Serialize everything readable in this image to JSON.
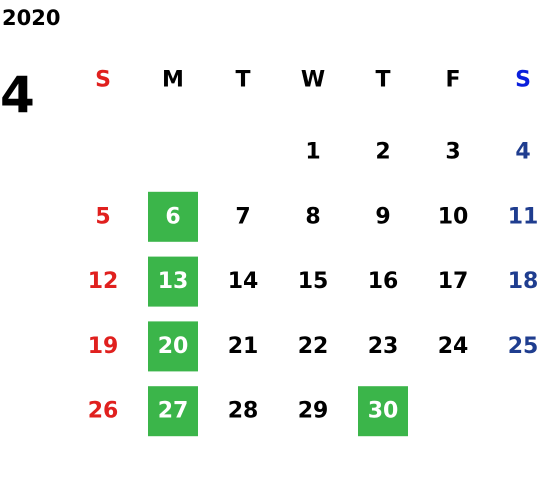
{
  "calendar": {
    "year": "2020",
    "month": "4",
    "weekdays": [
      "S",
      "M",
      "T",
      "W",
      "T",
      "F",
      "S"
    ],
    "weeks": [
      [
        null,
        null,
        null,
        1,
        2,
        3,
        4
      ],
      [
        5,
        6,
        7,
        8,
        9,
        10,
        11
      ],
      [
        12,
        13,
        14,
        15,
        16,
        17,
        18
      ],
      [
        19,
        20,
        21,
        22,
        23,
        24,
        25
      ],
      [
        26,
        27,
        28,
        29,
        30,
        null,
        null
      ]
    ],
    "highlighted_days": [
      6,
      13,
      20,
      27,
      30
    ],
    "highlight_color": "#3bb54a",
    "sunday_color": "#e0201e",
    "saturday_header_color": "#0a1fdc",
    "saturday_color": "#1f3d8f",
    "weekday_color": "#000000"
  }
}
